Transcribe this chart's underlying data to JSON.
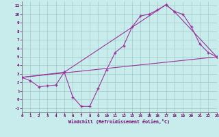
{
  "bg_color": "#c8ecec",
  "line_color": "#993399",
  "grid_color": "#a0c8c8",
  "axis_color": "#660066",
  "xlabel": "Windchill (Refroidissement éolien,°C)",
  "xlim": [
    0,
    23
  ],
  "ylim": [
    -1.5,
    11.5
  ],
  "xticks": [
    0,
    1,
    2,
    3,
    4,
    5,
    6,
    7,
    8,
    9,
    10,
    11,
    12,
    13,
    14,
    15,
    16,
    17,
    18,
    19,
    20,
    21,
    22,
    23
  ],
  "yticks": [
    -1,
    0,
    1,
    2,
    3,
    4,
    5,
    6,
    7,
    8,
    9,
    10,
    11
  ],
  "line1_x": [
    0,
    1,
    2,
    3,
    4,
    5,
    6,
    7,
    8,
    9,
    10,
    11,
    12,
    13,
    14,
    15,
    16,
    17,
    18,
    19,
    20,
    21,
    22,
    23
  ],
  "line1_y": [
    2.6,
    2.2,
    1.5,
    1.6,
    1.7,
    3.2,
    0.3,
    -0.8,
    -0.8,
    1.3,
    3.5,
    5.5,
    6.3,
    8.5,
    9.8,
    10.0,
    10.5,
    11.1,
    10.3,
    10.0,
    8.5,
    6.5,
    5.5,
    5.0
  ],
  "line2_x": [
    0,
    5,
    17,
    18,
    23
  ],
  "line2_y": [
    2.6,
    3.2,
    11.1,
    10.3,
    5.0
  ],
  "line3_x": [
    0,
    23
  ],
  "line3_y": [
    2.6,
    5.0
  ]
}
